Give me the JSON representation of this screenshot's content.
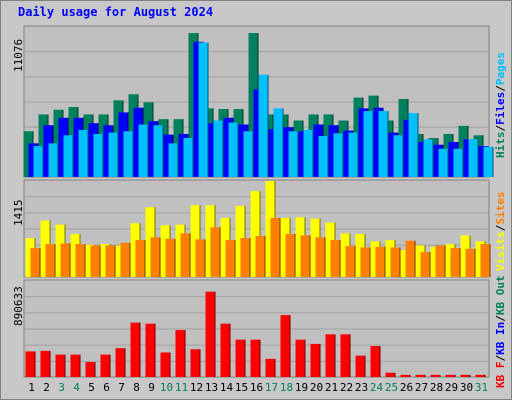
{
  "title": "Daily usage for August 2024",
  "colors": {
    "hits": "#00805c",
    "files": "#0000ff",
    "pages": "#00c0ff",
    "visits": "#ffff00",
    "sites": "#ff8000",
    "kbin": "#0000ff",
    "kbout": "#00805c",
    "kbf": "#ff0000",
    "weekday": "#000000",
    "weekend": "#00805c",
    "background": "#c8c8c8",
    "plot_bg": "#c0c0c0"
  },
  "legend_top": [
    {
      "text": "Hits",
      "color": "#00805c"
    },
    {
      "text": "/",
      "color": "#000000"
    },
    {
      "text": "Files",
      "color": "#0000ff"
    },
    {
      "text": "/",
      "color": "#000000"
    },
    {
      "text": "Pages",
      "color": "#00c0ff"
    }
  ],
  "legend_mid": [
    {
      "text": "Visits",
      "color": "#ffff00"
    },
    {
      "text": "/",
      "color": "#000000"
    },
    {
      "text": "Sites",
      "color": "#ff8000"
    }
  ],
  "legend_bot": [
    {
      "text": "KB F",
      "color": "#ff0000"
    },
    {
      "text": "/",
      "color": "#000000"
    },
    {
      "text": "KB In",
      "color": "#0000ff"
    },
    {
      "text": "/",
      "color": "#000000"
    },
    {
      "text": "KB Out",
      "color": "#00805c"
    }
  ],
  "chart_data": {
    "type": "bar",
    "title": "Daily usage for August 2024",
    "categories": [
      "1",
      "2",
      "3",
      "4",
      "5",
      "6",
      "7",
      "8",
      "9",
      "10",
      "11",
      "12",
      "13",
      "14",
      "15",
      "16",
      "17",
      "18",
      "19",
      "20",
      "21",
      "22",
      "23",
      "24",
      "25",
      "26",
      "27",
      "28",
      "29",
      "30",
      "31"
    ],
    "weekend_days": [
      "3",
      "4",
      "10",
      "11",
      "17",
      "18",
      "24",
      "25",
      "31"
    ],
    "panels": [
      {
        "name": "top",
        "ymax": 11076,
        "ymax_label": "11076",
        "series": [
          {
            "name": "Hits",
            "color": "#00805c",
            "values": [
              3400,
              4650,
              5000,
              5200,
              4650,
              4650,
              5700,
              6150,
              5550,
              4300,
              4300,
              10700,
              5100,
              5050,
              5050,
              10700,
              4650,
              4650,
              4200,
              4650,
              4650,
              4200,
              5900,
              6050,
              4200,
              5800,
              3200,
              2900,
              3200,
              3800,
              3100
            ]
          },
          {
            "name": "Files",
            "color": "#0000ff",
            "values": [
              2500,
              3850,
              4400,
              4400,
              4000,
              3850,
              4800,
              5150,
              4150,
              3150,
              3200,
              10050,
              4000,
              4400,
              3900,
              6500,
              3550,
              3700,
              3400,
              3900,
              3850,
              3450,
              5100,
              5150,
              3300,
              4250,
              2600,
              2400,
              2600,
              2800,
              2300
            ]
          },
          {
            "name": "Pages",
            "color": "#00c0ff",
            "values": [
              2300,
              2500,
              3100,
              3500,
              3200,
              3300,
              3400,
              3900,
              3850,
              2500,
              2900,
              10000,
              4200,
              4050,
              3400,
              7600,
              5100,
              3400,
              3500,
              3050,
              3250,
              3300,
              4900,
              4900,
              3100,
              4750,
              2800,
              2100,
              2100,
              2800,
              2250
            ]
          }
        ]
      },
      {
        "name": "middle",
        "ymax": 1415,
        "ymax_label": "1415",
        "series": [
          {
            "name": "Visits",
            "color": "#ffff00",
            "values": [
              580,
              840,
              780,
              640,
              480,
              490,
              470,
              800,
              1040,
              770,
              780,
              1070,
              1070,
              880,
              1060,
              1280,
              1430,
              880,
              890,
              870,
              810,
              650,
              640,
              530,
              550,
              400,
              470,
              450,
              490,
              620,
              530
            ]
          },
          {
            "name": "Sites",
            "color": "#ff8000",
            "values": [
              430,
              490,
              500,
              490,
              470,
              470,
              510,
              550,
              590,
              570,
              650,
              560,
              740,
              550,
              580,
              610,
              880,
              640,
              620,
              590,
              550,
              460,
              440,
              450,
              440,
              540,
              370,
              470,
              430,
              420,
              490
            ]
          }
        ]
      },
      {
        "name": "bottom",
        "ymax": 890633,
        "ymax_label": "890633",
        "series": [
          {
            "name": "KB F",
            "color": "#ff0000",
            "values": [
              240000,
              245000,
              210000,
              210000,
              140000,
              210000,
              270000,
              510000,
              500000,
              230000,
              440000,
              260000,
              800000,
              500000,
              350000,
              350000,
              170000,
              580000,
              350000,
              310000,
              400000,
              400000,
              200000,
              290000,
              40000,
              20000,
              20000,
              20000,
              20000,
              20000,
              20000
            ]
          },
          {
            "name": "KB In",
            "color": "#0000ff",
            "values": [
              0,
              0,
              0,
              0,
              0,
              0,
              0,
              0,
              0,
              0,
              0,
              0,
              0,
              0,
              0,
              0,
              0,
              0,
              0,
              0,
              0,
              0,
              0,
              0,
              0,
              0,
              0,
              0,
              0,
              0,
              0
            ]
          },
          {
            "name": "KB Out",
            "color": "#00805c",
            "values": [
              0,
              0,
              0,
              0,
              0,
              0,
              0,
              0,
              0,
              0,
              0,
              0,
              0,
              0,
              0,
              0,
              0,
              0,
              0,
              0,
              0,
              0,
              0,
              0,
              0,
              0,
              0,
              0,
              0,
              0,
              0
            ]
          }
        ]
      }
    ]
  }
}
